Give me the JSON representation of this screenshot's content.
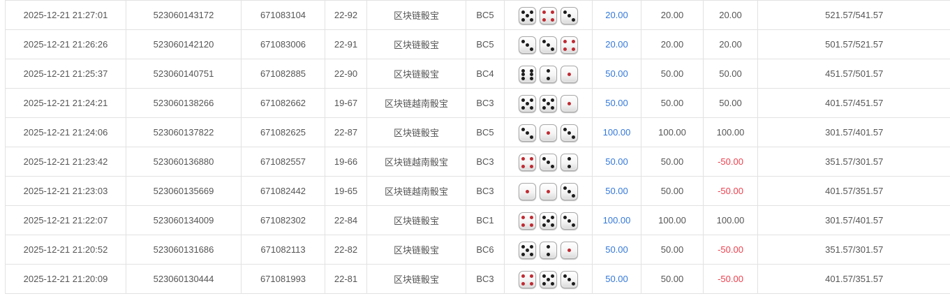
{
  "colors": {
    "bet_amount_blue": "#3478d8",
    "loss_red": "#ed3f4d",
    "text_gray": "#555555",
    "border_gray": "#e2e2e2",
    "pip_black": "#1c1c1c",
    "pip_red": "#c02a32"
  },
  "history_table": {
    "rows": [
      {
        "time": "2025-12-21 21:27:01",
        "bet_id": "523060143172",
        "round_id": "671083104",
        "period": "22-92",
        "game": "区块链骰宝",
        "table": "BC5",
        "dice": [
          5,
          4,
          3
        ],
        "bet_amount": "20.00",
        "valid_amount": "20.00",
        "win_loss": "20.00",
        "balance": "521.57/541.57"
      },
      {
        "time": "2025-12-21 21:26:26",
        "bet_id": "523060142120",
        "round_id": "671083006",
        "period": "22-91",
        "game": "区块链骰宝",
        "table": "BC5",
        "dice": [
          3,
          3,
          4
        ],
        "bet_amount": "20.00",
        "valid_amount": "20.00",
        "win_loss": "20.00",
        "balance": "501.57/521.57"
      },
      {
        "time": "2025-12-21 21:25:37",
        "bet_id": "523060140751",
        "round_id": "671082885",
        "period": "22-90",
        "game": "区块链骰宝",
        "table": "BC4",
        "dice": [
          6,
          2,
          1
        ],
        "bet_amount": "50.00",
        "valid_amount": "50.00",
        "win_loss": "50.00",
        "balance": "451.57/501.57"
      },
      {
        "time": "2025-12-21 21:24:21",
        "bet_id": "523060138266",
        "round_id": "671082662",
        "period": "19-67",
        "game": "区块链越南骰宝",
        "table": "BC3",
        "dice": [
          5,
          5,
          1
        ],
        "bet_amount": "50.00",
        "valid_amount": "50.00",
        "win_loss": "50.00",
        "balance": "401.57/451.57"
      },
      {
        "time": "2025-12-21 21:24:06",
        "bet_id": "523060137822",
        "round_id": "671082625",
        "period": "22-87",
        "game": "区块链骰宝",
        "table": "BC5",
        "dice": [
          3,
          1,
          3
        ],
        "bet_amount": "100.00",
        "valid_amount": "100.00",
        "win_loss": "100.00",
        "balance": "301.57/401.57"
      },
      {
        "time": "2025-12-21 21:23:42",
        "bet_id": "523060136880",
        "round_id": "671082557",
        "period": "19-66",
        "game": "区块链越南骰宝",
        "table": "BC3",
        "dice": [
          4,
          3,
          2
        ],
        "bet_amount": "50.00",
        "valid_amount": "50.00",
        "win_loss": "-50.00",
        "balance": "351.57/301.57"
      },
      {
        "time": "2025-12-21 21:23:03",
        "bet_id": "523060135669",
        "round_id": "671082442",
        "period": "19-65",
        "game": "区块链越南骰宝",
        "table": "BC3",
        "dice": [
          1,
          1,
          3
        ],
        "bet_amount": "50.00",
        "valid_amount": "50.00",
        "win_loss": "-50.00",
        "balance": "401.57/351.57"
      },
      {
        "time": "2025-12-21 21:22:07",
        "bet_id": "523060134009",
        "round_id": "671082302",
        "period": "22-84",
        "game": "区块链骰宝",
        "table": "BC1",
        "dice": [
          4,
          5,
          3
        ],
        "bet_amount": "100.00",
        "valid_amount": "100.00",
        "win_loss": "100.00",
        "balance": "301.57/401.57"
      },
      {
        "time": "2025-12-21 21:20:52",
        "bet_id": "523060131686",
        "round_id": "671082113",
        "period": "22-82",
        "game": "区块链骰宝",
        "table": "BC6",
        "dice": [
          5,
          2,
          1
        ],
        "bet_amount": "50.00",
        "valid_amount": "50.00",
        "win_loss": "-50.00",
        "balance": "351.57/301.57"
      },
      {
        "time": "2025-12-21 21:20:09",
        "bet_id": "523060130444",
        "round_id": "671081993",
        "period": "22-81",
        "game": "区块链骰宝",
        "table": "BC3",
        "dice": [
          4,
          5,
          3
        ],
        "bet_amount": "50.00",
        "valid_amount": "50.00",
        "win_loss": "-50.00",
        "balance": "401.57/351.57"
      }
    ]
  }
}
